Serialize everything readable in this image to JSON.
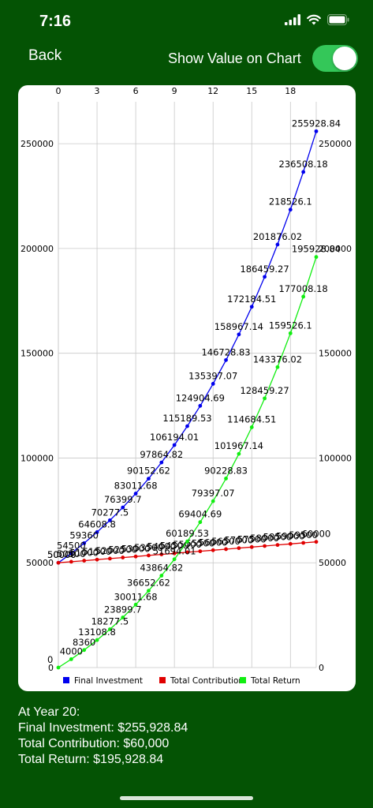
{
  "status_bar": {
    "time": "7:16"
  },
  "nav": {
    "back_label": "Back",
    "toggle_label": "Show Value on Chart",
    "toggle_on": true
  },
  "colors": {
    "background": "#045304",
    "final_investment": "#0000ee",
    "total_contribution": "#e00000",
    "total_return": "#11ee11"
  },
  "chart_data": {
    "type": "line",
    "x": [
      0,
      1,
      2,
      3,
      4,
      5,
      6,
      7,
      8,
      9,
      10,
      11,
      12,
      13,
      14,
      15,
      16,
      17,
      18,
      19,
      20
    ],
    "x_ticks": [
      "0",
      "3",
      "6",
      "9",
      "12",
      "15",
      "18"
    ],
    "x_tick_values": [
      0,
      3,
      6,
      9,
      12,
      15,
      18
    ],
    "xlim": [
      0,
      20
    ],
    "y_ticks": [
      "0",
      "50000",
      "100000",
      "150000",
      "200000",
      "250000"
    ],
    "y_tick_values": [
      0,
      50000,
      100000,
      150000,
      200000,
      250000
    ],
    "ylim": [
      0,
      270000
    ],
    "grid": true,
    "legend_position": "bottom",
    "series": [
      {
        "name": "Final Investment",
        "color": "#0000ee",
        "values": [
          50000,
          54500,
          59360,
          64608.8,
          70277.5,
          76399.7,
          83011.68,
          90152.62,
          97864.82,
          106194.01,
          115189.53,
          124904.69,
          135397.07,
          146728.83,
          158967.14,
          172184.51,
          186459.27,
          201876.02,
          218526.1,
          236508.18,
          255928.84
        ],
        "labels": [
          "50000",
          "54500",
          "59360",
          "64608.8",
          "70277.5",
          "76399.7",
          "83011.68",
          "90152.62",
          "97864.82",
          "106194.01",
          "115189.53",
          "124904.69",
          "135397.07",
          "146728.83",
          "158967.14",
          "172184.51",
          "186459.27",
          "201876.02",
          "218526.1",
          "236508.18",
          "255928.84"
        ]
      },
      {
        "name": "Total Contribution",
        "color": "#e00000",
        "values": [
          50000,
          50500,
          51000,
          51500,
          52000,
          52500,
          53000,
          53500,
          54000,
          54500,
          55000,
          55500,
          56000,
          56500,
          57000,
          57500,
          58000,
          58500,
          59000,
          59500,
          60000
        ],
        "labels": [
          "50000",
          "50500",
          "51000",
          "51500",
          "52000",
          "52500",
          "53000",
          "53500",
          "54000",
          "54500",
          "55000",
          "55500",
          "56000",
          "56500",
          "57000",
          "57500",
          "58000",
          "58500",
          "59000",
          "59500",
          "60000"
        ]
      },
      {
        "name": "Total Return",
        "color": "#11ee11",
        "values": [
          0,
          4000,
          8360,
          13108.8,
          18277.5,
          23899.7,
          30011.68,
          36652.62,
          43864.82,
          51694.01,
          60189.53,
          69404.69,
          79397.07,
          90228.83,
          101967.14,
          114684.51,
          128459.27,
          143376.02,
          159526.1,
          177008.18,
          195928.84
        ],
        "labels": [
          "0",
          "4000",
          "8360",
          "13108.8",
          "18277.5",
          "23899.7",
          "30011.68",
          "36652.62",
          "43864.82",
          "51694.01",
          "60189.53",
          "69404.69",
          "79397.07",
          "90228.83",
          "101967.14",
          "114684.51",
          "128459.27",
          "143376.02",
          "159526.1",
          "177008.18",
          "195928.84"
        ]
      }
    ]
  },
  "summary": {
    "year_line": "At Year 20:",
    "final_investment": "Final Investment: $255,928.84",
    "total_contribution": "Total Contribution: $60,000",
    "total_return": "Total Return: $195,928.84"
  }
}
